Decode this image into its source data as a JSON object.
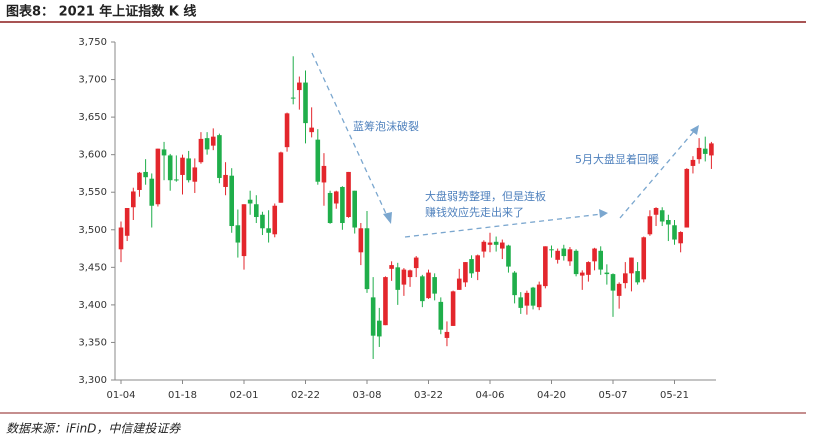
{
  "chart_data": {
    "type": "candlestick",
    "title": "图表8：  2021 年上证指数 K 线",
    "source": "数据来源：iFinD，中信建投证券",
    "annotations": [
      "蓝筹泡沫破裂",
      "大盘弱势整理，但是连板",
      "赚钱效应先走出来了",
      "5月大盘显着回暖"
    ],
    "up_color": "#e3262c",
    "down_color": "#1fae4a",
    "categories": [
      "01-04",
      null,
      null,
      null,
      null,
      null,
      null,
      null,
      null,
      null,
      "01-18",
      null,
      null,
      null,
      null,
      null,
      null,
      null,
      null,
      null,
      "02-01",
      null,
      null,
      null,
      null,
      null,
      null,
      null,
      null,
      null,
      "02-22",
      null,
      null,
      null,
      null,
      null,
      null,
      null,
      null,
      null,
      "03-08",
      null,
      null,
      null,
      null,
      null,
      null,
      null,
      null,
      null,
      "03-22",
      null,
      null,
      null,
      null,
      null,
      null,
      null,
      null,
      null,
      "04-06",
      null,
      null,
      null,
      null,
      null,
      null,
      null,
      null,
      null,
      "04-20",
      null,
      null,
      null,
      null,
      null,
      null,
      null,
      null,
      null,
      "05-07",
      null,
      null,
      null,
      null,
      null,
      null,
      null,
      null,
      null,
      "05-21",
      null,
      null,
      null,
      null,
      null,
      null
    ],
    "open": [
      3474,
      3492,
      3530,
      3553,
      3577,
      3568,
      3534,
      3607,
      3599,
      3567,
      3573,
      3595,
      3564,
      3590,
      3622,
      3612,
      3626,
      3557,
      3572,
      3506,
      3465,
      3540,
      3534,
      3520,
      3502,
      3494,
      3536,
      3610,
      3676,
      3686,
      3696,
      3630,
      3620,
      3563,
      3549,
      3535,
      3557,
      3517,
      3552,
      3470,
      3502,
      3410,
      3379,
      3373,
      3448,
      3450,
      3427,
      3437,
      3449,
      3438,
      3409,
      3437,
      3404,
      3356,
      3372,
      3420,
      3430,
      3461,
      3444,
      3471,
      3480,
      3484,
      3475,
      3479,
      3443,
      3410,
      3399,
      3423,
      3397,
      3425,
      3474,
      3460,
      3475,
      3458,
      3472,
      3439,
      3440,
      3458,
      3472,
      3443,
      3441,
      3412,
      3429,
      3442,
      3445,
      3434,
      3494,
      3520,
      3526,
      3513,
      3506,
      3482,
      3503,
      3585,
      3594,
      3608,
      3599
    ],
    "high": [
      3511,
      3528,
      3556,
      3577,
      3594,
      3575,
      3608,
      3617,
      3601,
      3599,
      3600,
      3605,
      3595,
      3630,
      3630,
      3635,
      3628,
      3590,
      3582,
      3527,
      3534,
      3552,
      3546,
      3524,
      3526,
      3535,
      3604,
      3656,
      3731,
      3704,
      3712,
      3663,
      3634,
      3602,
      3552,
      3552,
      3558,
      3577,
      3552,
      3509,
      3525,
      3437,
      3396,
      3438,
      3458,
      3456,
      3449,
      3447,
      3465,
      3440,
      3447,
      3442,
      3410,
      3378,
      3419,
      3448,
      3457,
      3466,
      3467,
      3486,
      3496,
      3491,
      3487,
      3480,
      3445,
      3417,
      3419,
      3424,
      3431,
      3478,
      3479,
      3475,
      3480,
      3477,
      3474,
      3446,
      3458,
      3476,
      3478,
      3454,
      3442,
      3430,
      3457,
      3463,
      3457,
      3491,
      3526,
      3530,
      3530,
      3520,
      3513,
      3498,
      3582,
      3598,
      3622,
      3624,
      3617
    ],
    "low": [
      3457,
      3485,
      3513,
      3544,
      3560,
      3503,
      3531,
      3566,
      3552,
      3564,
      3547,
      3563,
      3549,
      3588,
      3600,
      3606,
      3562,
      3546,
      3496,
      3463,
      3447,
      3520,
      3509,
      3493,
      3483,
      3490,
      3536,
      3604,
      3667,
      3660,
      3615,
      3623,
      3560,
      3532,
      3508,
      3528,
      3500,
      3516,
      3495,
      3453,
      3416,
      3328,
      3344,
      3373,
      3432,
      3400,
      3412,
      3424,
      3437,
      3397,
      3408,
      3406,
      3361,
      3345,
      3372,
      3420,
      3424,
      3436,
      3433,
      3463,
      3470,
      3471,
      3461,
      3443,
      3402,
      3388,
      3387,
      3394,
      3393,
      3422,
      3463,
      3455,
      3459,
      3452,
      3438,
      3420,
      3431,
      3446,
      3440,
      3427,
      3384,
      3395,
      3422,
      3418,
      3427,
      3430,
      3492,
      3505,
      3505,
      3485,
      3480,
      3470,
      3503,
      3575,
      3588,
      3591,
      3581
    ],
    "close": [
      3503,
      3529,
      3551,
      3576,
      3570,
      3532,
      3608,
      3599,
      3566,
      3566,
      3596,
      3566,
      3583,
      3621,
      3607,
      3624,
      3569,
      3573,
      3505,
      3483,
      3534,
      3535,
      3517,
      3502,
      3496,
      3532,
      3603,
      3655,
      3675,
      3696,
      3642,
      3636,
      3564,
      3585,
      3509,
      3551,
      3509,
      3577,
      3503,
      3502,
      3421,
      3359,
      3358,
      3437,
      3453,
      3420,
      3447,
      3446,
      3463,
      3405,
      3443,
      3415,
      3367,
      3364,
      3418,
      3435,
      3457,
      3442,
      3466,
      3484,
      3483,
      3480,
      3483,
      3451,
      3413,
      3396,
      3416,
      3399,
      3427,
      3478,
      3473,
      3472,
      3465,
      3474,
      3441,
      3443,
      3457,
      3475,
      3447,
      3441,
      3419,
      3428,
      3442,
      3463,
      3430,
      3490,
      3518,
      3529,
      3511,
      3507,
      3487,
      3497,
      3581,
      3593,
      3609,
      3601,
      3615
    ],
    "ylim": [
      3300,
      3750
    ],
    "yticks": [
      {
        "value": 3300,
        "label": "3,300"
      },
      {
        "value": 3350,
        "label": "3,350"
      },
      {
        "value": 3400,
        "label": "3,400"
      },
      {
        "value": 3450,
        "label": "3,450"
      },
      {
        "value": 3500,
        "label": "3,500"
      },
      {
        "value": 3550,
        "label": "3,550"
      },
      {
        "value": 3600,
        "label": "3,600"
      },
      {
        "value": 3650,
        "label": "3,650"
      },
      {
        "value": 3700,
        "label": "3,700"
      },
      {
        "value": 3750,
        "label": "3,750"
      }
    ]
  }
}
